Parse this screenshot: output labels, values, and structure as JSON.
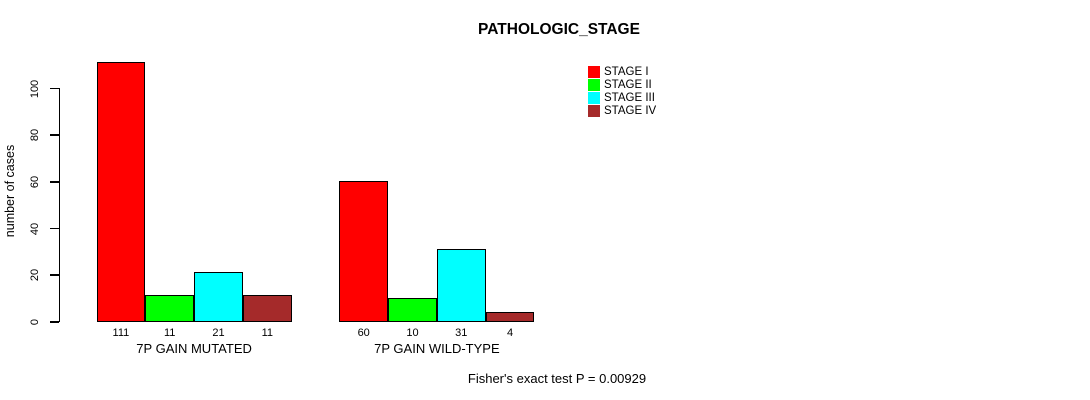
{
  "chart_data": {
    "type": "bar",
    "title": "PATHOLOGIC_STAGE",
    "ylabel": "number of cases",
    "xlabel": "",
    "categories": [
      "7P GAIN MUTATED",
      "7P GAIN WILD-TYPE"
    ],
    "series": [
      {
        "name": "STAGE I",
        "color": "#FF0000",
        "values": [
          111,
          60
        ]
      },
      {
        "name": "STAGE II",
        "color": "#00FF00",
        "values": [
          11,
          10
        ]
      },
      {
        "name": "STAGE III",
        "color": "#00FFFF",
        "values": [
          21,
          31
        ]
      },
      {
        "name": "STAGE IV",
        "color": "#A52A2A",
        "values": [
          11,
          4
        ]
      }
    ],
    "yticks": [
      0,
      20,
      40,
      60,
      80,
      100
    ],
    "ylim": [
      0,
      115
    ],
    "grid": false,
    "bar_value_labels": true,
    "legend_position": "top-right",
    "annotation": "Fisher's exact test P = 0.00929"
  }
}
